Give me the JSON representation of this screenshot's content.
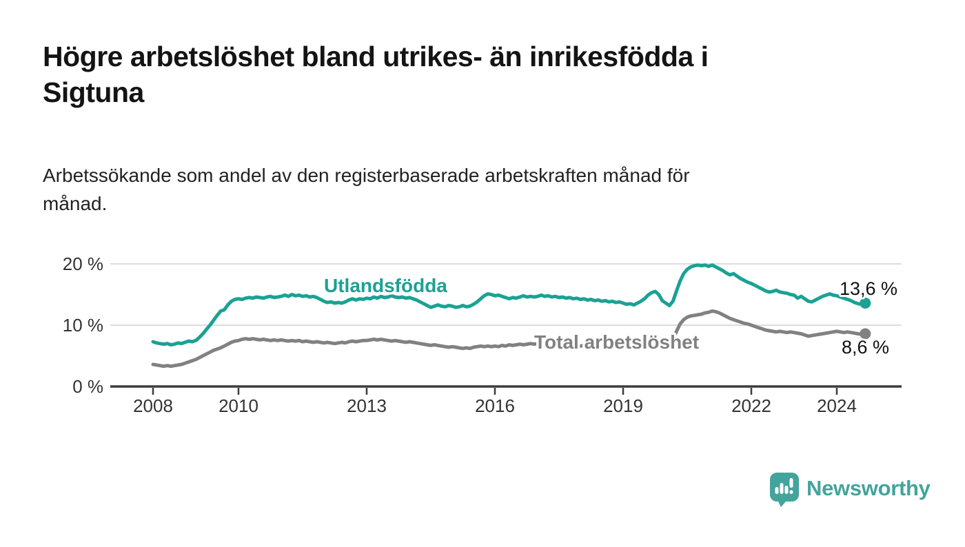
{
  "header": {
    "title": "Högre arbetslöshet bland utrikes- än inrikesfödda i Sigtuna",
    "title_lines": [
      "Högre arbetslöshet bland utrikes- än inrikesfödda i",
      "Sigtuna"
    ],
    "subtitle": "Arbetssökande som andel av den registerbaserade arbetskraften månad för månad.",
    "subtitle_lines": [
      "Arbetssökande som andel av den registerbaserade arbetskraften månad för",
      "månad."
    ]
  },
  "branding": {
    "logo_text": "Newsworthy",
    "logo_color": "#43a49b",
    "logo_icon": "bar-chart-speech-bubble-icon"
  },
  "colors": {
    "title_text": "#141414",
    "subtitle_text": "#222222",
    "axis": "#3c3c3c",
    "grid": "#dcdcdc",
    "tick_text": "#333333",
    "value_label_text": "#111111",
    "series_utlandsfodda": "#1aa294",
    "series_total": "#818181"
  },
  "chart_data": {
    "type": "line",
    "title": "",
    "xlabel": "",
    "ylabel": "",
    "frequency": "monthly",
    "x_start": "2008-01",
    "x_end": "2024-09",
    "ylim": [
      0,
      21.5
    ],
    "grid": "horizontal",
    "y_ticks": [
      0,
      10,
      20
    ],
    "y_tick_labels": [
      "0 %",
      "10 %",
      "20 %"
    ],
    "x_tick_years": [
      2008,
      2010,
      2013,
      2016,
      2019,
      2022,
      2024
    ],
    "x_tick_labels": [
      "2008",
      "2010",
      "2013",
      "2016",
      "2019",
      "2022",
      "2024"
    ],
    "series": [
      {
        "name": "Utlandsfödda",
        "color": "#1aa294",
        "end_value": 13.6,
        "end_label": "13,6 %",
        "values": [
          7.3,
          7.1,
          7.0,
          6.9,
          7.0,
          6.8,
          6.9,
          7.1,
          7.0,
          7.2,
          7.4,
          7.3,
          7.5,
          8.0,
          8.6,
          9.3,
          10.0,
          10.8,
          11.6,
          12.3,
          12.5,
          13.3,
          13.9,
          14.2,
          14.3,
          14.2,
          14.4,
          14.5,
          14.4,
          14.6,
          14.5,
          14.4,
          14.6,
          14.7,
          14.5,
          14.6,
          14.7,
          14.9,
          14.7,
          15.0,
          14.8,
          14.9,
          14.7,
          14.8,
          14.6,
          14.7,
          14.5,
          14.2,
          13.9,
          13.7,
          13.8,
          13.6,
          13.7,
          13.6,
          13.8,
          14.1,
          14.3,
          14.1,
          14.3,
          14.2,
          14.4,
          14.3,
          14.6,
          14.4,
          14.7,
          14.5,
          14.6,
          14.8,
          14.6,
          14.5,
          14.6,
          14.4,
          14.5,
          14.3,
          14.1,
          13.8,
          13.5,
          13.2,
          12.9,
          13.1,
          13.3,
          13.1,
          13.0,
          13.2,
          13.1,
          12.9,
          13.0,
          13.2,
          13.0,
          13.1,
          13.4,
          13.8,
          14.3,
          14.8,
          15.1,
          15.0,
          14.8,
          14.9,
          14.7,
          14.5,
          14.3,
          14.5,
          14.4,
          14.6,
          14.8,
          14.6,
          14.7,
          14.6,
          14.7,
          14.9,
          14.7,
          14.8,
          14.6,
          14.7,
          14.5,
          14.6,
          14.4,
          14.5,
          14.3,
          14.4,
          14.2,
          14.3,
          14.1,
          14.2,
          14.0,
          14.1,
          13.9,
          14.0,
          13.8,
          13.9,
          13.7,
          13.8,
          13.6,
          13.4,
          13.5,
          13.3,
          13.6,
          13.9,
          14.3,
          14.9,
          15.3,
          15.5,
          15.0,
          14.0,
          13.6,
          13.2,
          13.9,
          15.6,
          17.2,
          18.4,
          19.1,
          19.5,
          19.7,
          19.8,
          19.7,
          19.8,
          19.6,
          19.8,
          19.5,
          19.2,
          18.9,
          18.5,
          18.2,
          18.4,
          18.0,
          17.6,
          17.3,
          17.0,
          16.8,
          16.5,
          16.2,
          15.9,
          15.6,
          15.4,
          15.5,
          15.7,
          15.4,
          15.3,
          15.2,
          15.0,
          14.9,
          14.4,
          14.7,
          14.3,
          13.9,
          13.8,
          14.1,
          14.4,
          14.7,
          14.9,
          15.1,
          14.9,
          14.8,
          14.6,
          14.4,
          14.2,
          14.0,
          13.7,
          13.5,
          13.4,
          13.6
        ]
      },
      {
        "name": "Total arbetslöshet",
        "color": "#818181",
        "end_value": 8.6,
        "end_label": "8,6 %",
        "values": [
          3.6,
          3.5,
          3.4,
          3.3,
          3.4,
          3.3,
          3.4,
          3.5,
          3.6,
          3.8,
          4.0,
          4.2,
          4.4,
          4.7,
          5.0,
          5.3,
          5.6,
          5.9,
          6.1,
          6.3,
          6.6,
          6.9,
          7.2,
          7.4,
          7.5,
          7.7,
          7.8,
          7.7,
          7.8,
          7.7,
          7.6,
          7.7,
          7.6,
          7.5,
          7.6,
          7.5,
          7.6,
          7.5,
          7.4,
          7.5,
          7.4,
          7.5,
          7.3,
          7.4,
          7.3,
          7.2,
          7.3,
          7.2,
          7.1,
          7.2,
          7.1,
          7.0,
          7.1,
          7.2,
          7.1,
          7.3,
          7.4,
          7.3,
          7.4,
          7.5,
          7.5,
          7.6,
          7.7,
          7.6,
          7.7,
          7.6,
          7.5,
          7.4,
          7.5,
          7.4,
          7.3,
          7.2,
          7.3,
          7.2,
          7.1,
          7.0,
          6.9,
          6.8,
          6.7,
          6.8,
          6.7,
          6.6,
          6.5,
          6.4,
          6.5,
          6.4,
          6.3,
          6.2,
          6.3,
          6.2,
          6.4,
          6.5,
          6.6,
          6.5,
          6.6,
          6.5,
          6.6,
          6.5,
          6.7,
          6.6,
          6.8,
          6.7,
          6.8,
          6.9,
          6.8,
          6.9,
          7.0,
          6.9,
          7.0,
          7.1,
          7.0,
          7.1,
          7.0,
          6.9,
          7.0,
          6.9,
          6.8,
          6.9,
          6.8,
          6.7,
          6.6,
          6.7,
          6.6,
          6.5,
          6.6,
          6.5,
          6.4,
          6.5,
          6.4,
          6.5,
          6.6,
          6.5,
          6.6,
          6.5,
          6.6,
          6.7,
          6.6,
          6.7,
          6.8,
          6.9,
          6.8,
          6.9,
          6.8,
          6.9,
          7.0,
          7.1,
          7.6,
          9.0,
          10.2,
          10.9,
          11.3,
          11.5,
          11.6,
          11.7,
          11.8,
          12.0,
          12.1,
          12.3,
          12.2,
          12.0,
          11.7,
          11.4,
          11.1,
          10.9,
          10.7,
          10.5,
          10.3,
          10.2,
          10.0,
          9.8,
          9.6,
          9.4,
          9.2,
          9.1,
          9.0,
          8.9,
          9.0,
          8.9,
          8.8,
          8.9,
          8.8,
          8.7,
          8.6,
          8.4,
          8.2,
          8.3,
          8.4,
          8.5,
          8.6,
          8.7,
          8.8,
          8.9,
          9.0,
          8.9,
          8.8,
          8.9,
          8.8,
          8.7,
          8.6,
          8.5,
          8.6
        ]
      }
    ]
  }
}
